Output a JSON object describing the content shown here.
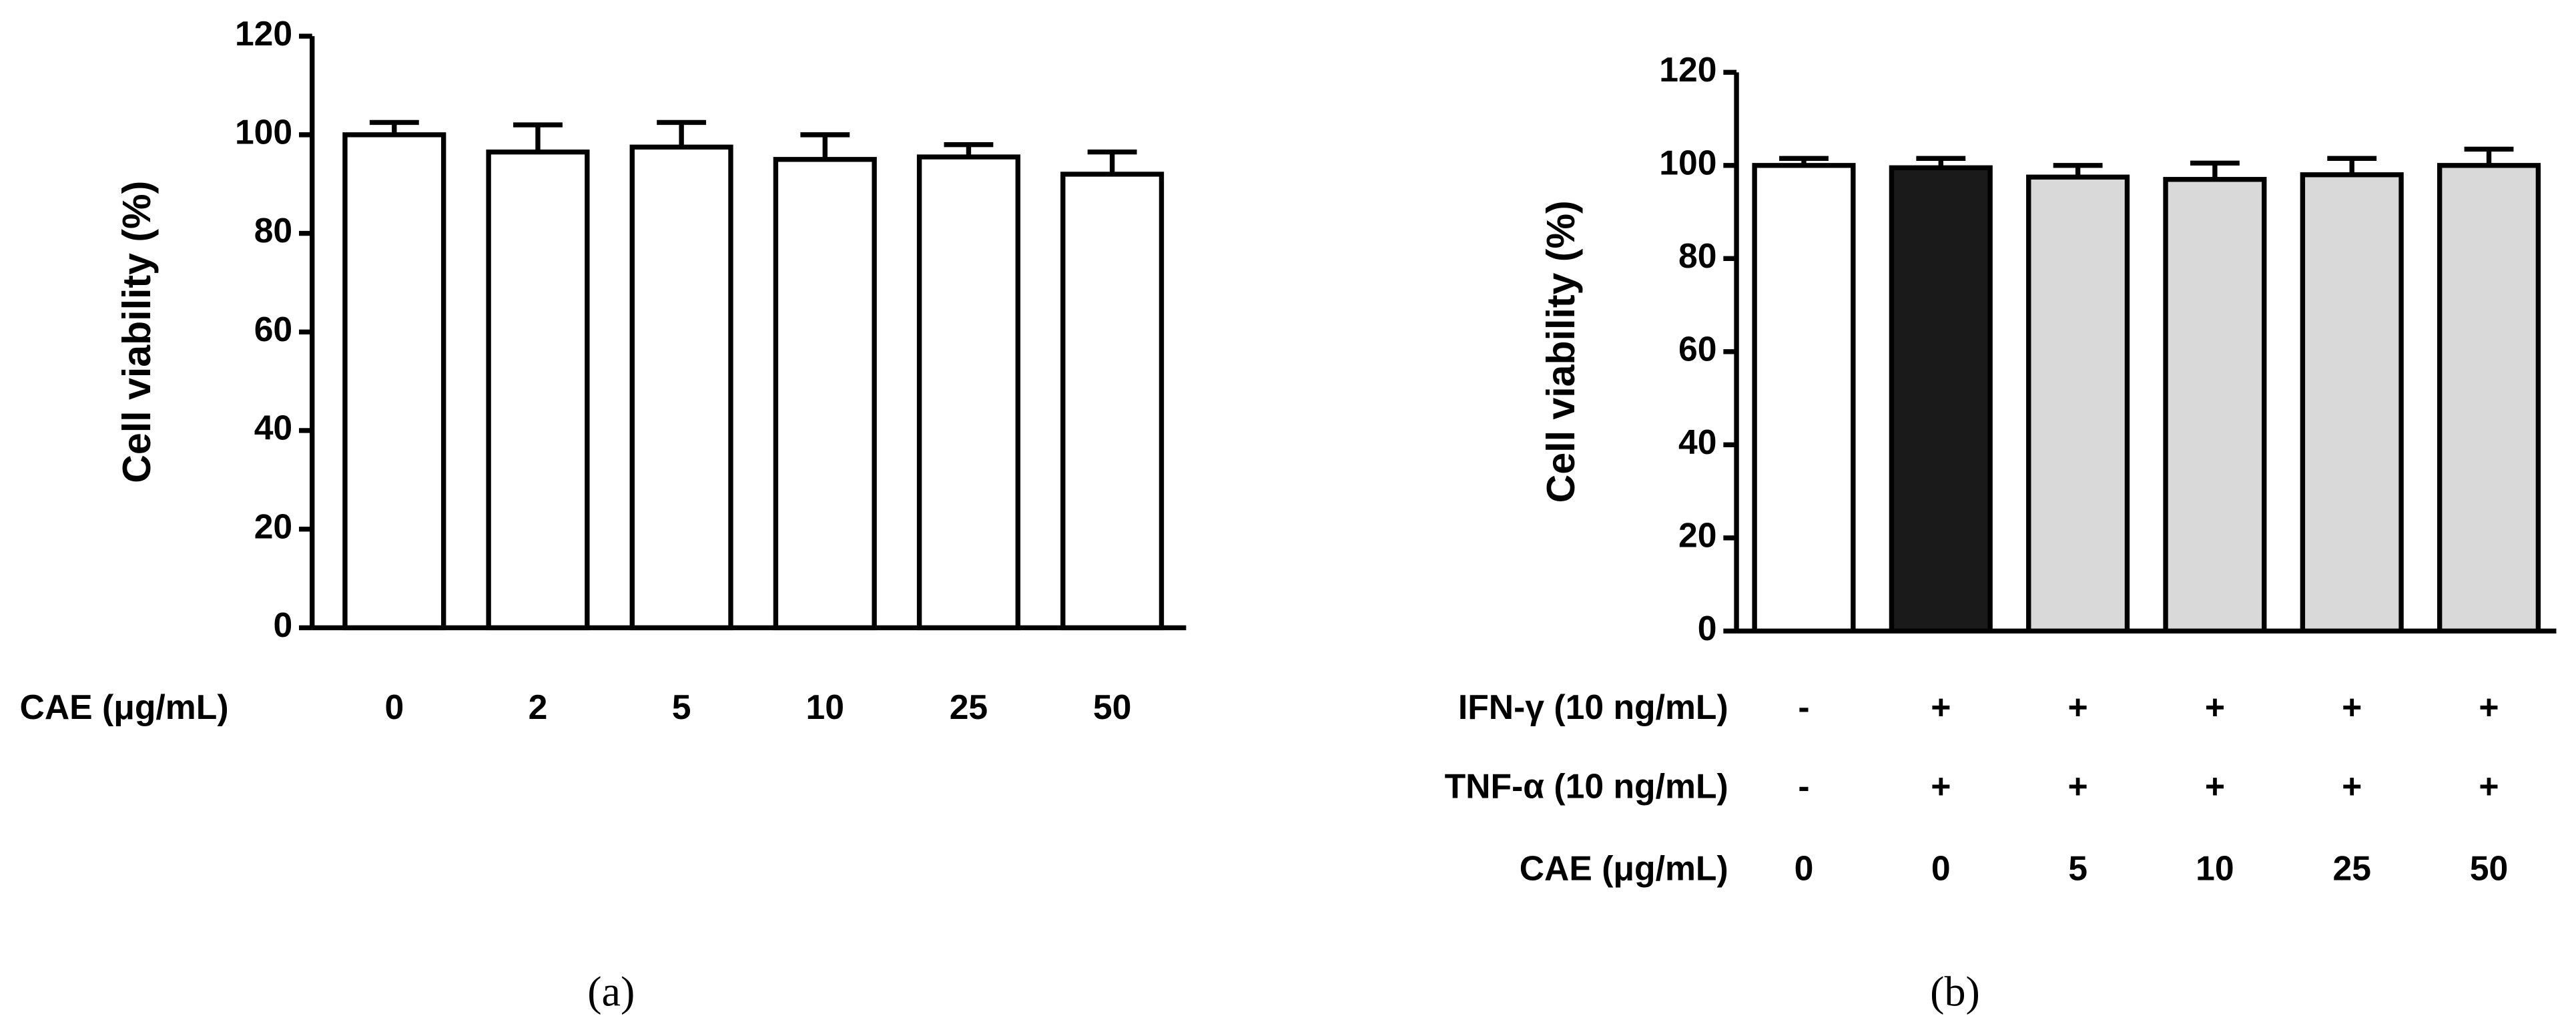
{
  "chart_data": [
    {
      "type": "bar",
      "panel_label": "(a)",
      "y_label": "Cell viability (%)",
      "ylim": [
        0,
        120
      ],
      "yticks": [
        0,
        20,
        40,
        60,
        80,
        100,
        120
      ],
      "label_rows": [
        {
          "label": "CAE (μg/mL)",
          "labels": [
            "0",
            "2",
            "5",
            "10",
            "25",
            "50"
          ]
        }
      ],
      "values": [
        100,
        96.5,
        97.5,
        95,
        95.5,
        92
      ],
      "errors": [
        2.5,
        5.5,
        5,
        5,
        2.5,
        4.5
      ],
      "colors": [
        "#ffffff",
        "#ffffff",
        "#ffffff",
        "#ffffff",
        "#ffffff",
        "#ffffff"
      ]
    },
    {
      "type": "bar",
      "panel_label": "(b)",
      "y_label": "Cell viability (%)",
      "ylim": [
        0,
        120
      ],
      "yticks": [
        0,
        20,
        40,
        60,
        80,
        100,
        120
      ],
      "label_rows": [
        {
          "label": "IFN-γ (10 ng/mL)",
          "labels": [
            "-",
            "+",
            "+",
            "+",
            "+",
            "+"
          ]
        },
        {
          "label": "TNF-α (10 ng/mL)",
          "labels": [
            "-",
            "+",
            "+",
            "+",
            "+",
            "+"
          ]
        },
        {
          "label": "CAE (μg/mL)",
          "labels": [
            "0",
            "0",
            "5",
            "10",
            "25",
            "50"
          ]
        }
      ],
      "values": [
        100,
        99.5,
        97.5,
        97,
        98,
        100
      ],
      "errors": [
        1.5,
        2,
        2.5,
        3.5,
        3.5,
        3.5
      ],
      "colors": [
        "#ffffff",
        "#1a1a1a",
        "#d9d9d9",
        "#d9d9d9",
        "#d9d9d9",
        "#d9d9d9"
      ]
    }
  ]
}
